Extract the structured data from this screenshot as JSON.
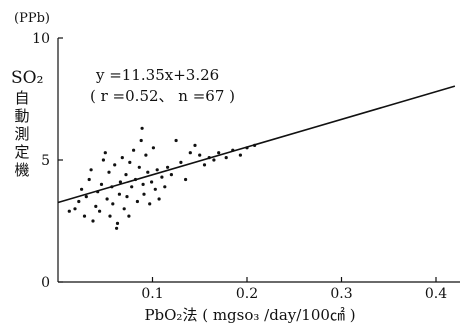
{
  "chart_data": {
    "type": "scatter",
    "unit_label": "(PPb)",
    "ylabel_line1": "SO₂",
    "ylabel_line2": [
      "自",
      "動",
      "測",
      "定",
      "機"
    ],
    "xlabel": "PbO₂法 ( mgso₃ /day/100㎠ )",
    "xlim": [
      0,
      0.4
    ],
    "ylim": [
      0,
      10
    ],
    "x_ticks": [
      "0.1",
      "0.2",
      "0.3",
      "0.4"
    ],
    "x_tick_values": [
      0.1,
      0.2,
      0.3,
      0.4
    ],
    "y_ticks": [
      "0",
      "5",
      "10"
    ],
    "y_tick_values": [
      0,
      5,
      10
    ],
    "grid": false,
    "regression": {
      "equation": "y =11.35x+3.26",
      "stats": "( r =0.52、 n =67 )",
      "slope": 11.35,
      "intercept": 3.26,
      "x_start": 0,
      "x_end": 0.42
    },
    "colors": {
      "ink": "#111111"
    },
    "points": [
      [
        0.012,
        2.9
      ],
      [
        0.018,
        3.0
      ],
      [
        0.022,
        3.3
      ],
      [
        0.025,
        3.8
      ],
      [
        0.028,
        2.7
      ],
      [
        0.03,
        3.5
      ],
      [
        0.033,
        4.2
      ],
      [
        0.035,
        4.6
      ],
      [
        0.037,
        2.5
      ],
      [
        0.04,
        3.1
      ],
      [
        0.042,
        3.7
      ],
      [
        0.044,
        2.9
      ],
      [
        0.046,
        4.0
      ],
      [
        0.048,
        5.0
      ],
      [
        0.05,
        5.3
      ],
      [
        0.052,
        3.4
      ],
      [
        0.054,
        4.5
      ],
      [
        0.055,
        2.7
      ],
      [
        0.057,
        3.9
      ],
      [
        0.058,
        3.2
      ],
      [
        0.06,
        4.8
      ],
      [
        0.062,
        2.2
      ],
      [
        0.063,
        2.4
      ],
      [
        0.065,
        3.6
      ],
      [
        0.066,
        4.1
      ],
      [
        0.068,
        5.1
      ],
      [
        0.07,
        3.0
      ],
      [
        0.072,
        4.4
      ],
      [
        0.073,
        3.5
      ],
      [
        0.075,
        2.7
      ],
      [
        0.076,
        4.9
      ],
      [
        0.078,
        3.9
      ],
      [
        0.08,
        5.4
      ],
      [
        0.082,
        4.2
      ],
      [
        0.084,
        3.3
      ],
      [
        0.086,
        4.7
      ],
      [
        0.088,
        5.8
      ],
      [
        0.089,
        6.3
      ],
      [
        0.09,
        4.0
      ],
      [
        0.091,
        3.6
      ],
      [
        0.093,
        5.2
      ],
      [
        0.095,
        4.5
      ],
      [
        0.097,
        3.2
      ],
      [
        0.099,
        4.1
      ],
      [
        0.101,
        5.5
      ],
      [
        0.103,
        3.8
      ],
      [
        0.105,
        4.6
      ],
      [
        0.107,
        3.4
      ],
      [
        0.11,
        4.3
      ],
      [
        0.113,
        3.9
      ],
      [
        0.116,
        4.7
      ],
      [
        0.12,
        4.4
      ],
      [
        0.125,
        5.8
      ],
      [
        0.13,
        4.9
      ],
      [
        0.135,
        4.2
      ],
      [
        0.14,
        5.3
      ],
      [
        0.145,
        5.6
      ],
      [
        0.15,
        5.2
      ],
      [
        0.155,
        4.8
      ],
      [
        0.16,
        5.1
      ],
      [
        0.165,
        5.0
      ],
      [
        0.17,
        5.3
      ],
      [
        0.178,
        5.1
      ],
      [
        0.185,
        5.4
      ],
      [
        0.193,
        5.2
      ],
      [
        0.2,
        5.5
      ],
      [
        0.208,
        5.6
      ]
    ]
  }
}
